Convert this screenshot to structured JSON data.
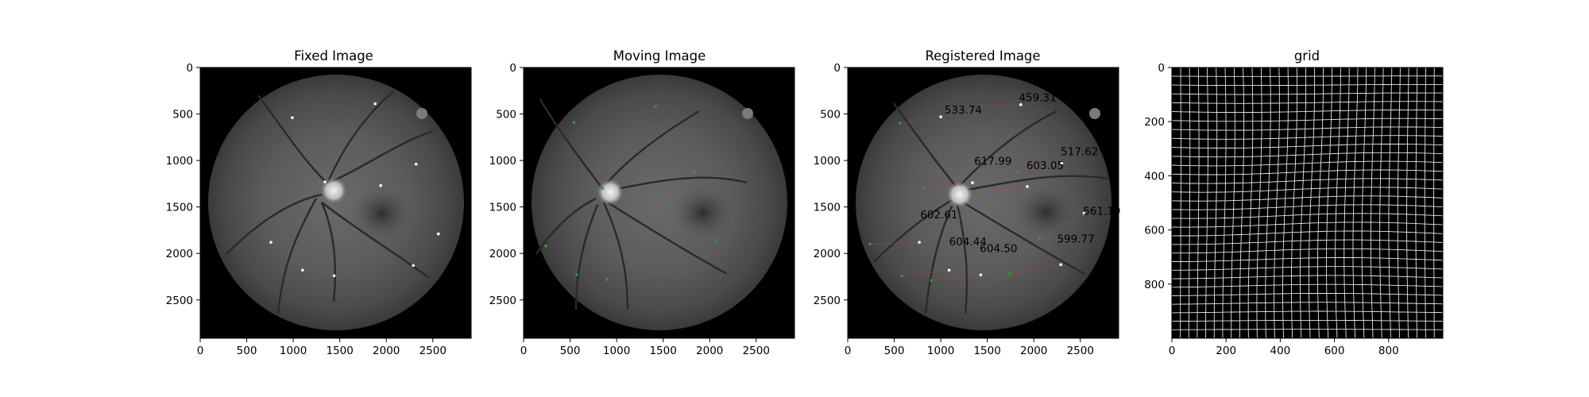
{
  "figure": {
    "panels": [
      {
        "title": "Fixed Image",
        "xticks": [
          "0",
          "500",
          "1000",
          "1500",
          "2000",
          "2500"
        ],
        "yticks": [
          "0",
          "500",
          "1000",
          "1500",
          "2000",
          "2500"
        ],
        "points": [
          [
            990,
            540
          ],
          [
            1880,
            390
          ],
          [
            2320,
            1040
          ],
          [
            1940,
            1270
          ],
          [
            2560,
            1790
          ],
          [
            2290,
            2130
          ],
          [
            1440,
            2240
          ],
          [
            1100,
            2180
          ],
          [
            760,
            1880
          ],
          [
            1340,
            1230
          ]
        ]
      },
      {
        "title": "Moving Image",
        "xticks": [
          "0",
          "500",
          "1000",
          "1500",
          "2000",
          "2500"
        ],
        "yticks": [
          "0",
          "500",
          "1000",
          "1500",
          "2000",
          "2500"
        ],
        "points": [
          [
            540,
            590
          ],
          [
            1420,
            420
          ],
          [
            1830,
            1120
          ],
          [
            1430,
            1340
          ],
          [
            2070,
            1860
          ],
          [
            1740,
            2200
          ],
          [
            900,
            2280
          ],
          [
            570,
            2230
          ],
          [
            240,
            1920
          ],
          [
            850,
            1300
          ]
        ]
      },
      {
        "title": "Registered Image",
        "xticks": [
          "0",
          "500",
          "1000",
          "1500",
          "2000",
          "2500"
        ],
        "yticks": [
          "0",
          "500",
          "1000",
          "1500",
          "2000",
          "2500"
        ],
        "points": [
          [
            1000,
            530
          ],
          [
            1860,
            400
          ],
          [
            2300,
            1030
          ],
          [
            1930,
            1280
          ],
          [
            2540,
            1570
          ],
          [
            2290,
            2120
          ],
          [
            1430,
            2230
          ],
          [
            1090,
            2180
          ],
          [
            770,
            1880
          ],
          [
            1340,
            1240
          ]
        ],
        "green_points": [
          [
            560,
            600
          ],
          [
            1420,
            420
          ],
          [
            1830,
            1120
          ],
          [
            1400,
            1340
          ],
          [
            2060,
            1840
          ],
          [
            1740,
            2220
          ],
          [
            900,
            2290
          ],
          [
            580,
            2240
          ],
          [
            240,
            1900
          ],
          [
            820,
            1300
          ]
        ],
        "annotations": [
          {
            "text": "533.74",
            "x": 1040,
            "y": 460
          },
          {
            "text": "459.31",
            "x": 1840,
            "y": 330
          },
          {
            "text": "517.62",
            "x": 2290,
            "y": 910
          },
          {
            "text": "617.99",
            "x": 1360,
            "y": 1010
          },
          {
            "text": "603.05",
            "x": 1920,
            "y": 1060
          },
          {
            "text": "602.61",
            "x": 780,
            "y": 1590
          },
          {
            "text": "561.19",
            "x": 2530,
            "y": 1550
          },
          {
            "text": "604.44",
            "x": 1090,
            "y": 1880
          },
          {
            "text": "604.50",
            "x": 1420,
            "y": 1950
          },
          {
            "text": "599.77",
            "x": 2250,
            "y": 1850
          }
        ]
      },
      {
        "title": "grid",
        "xticks": [
          "0",
          "200",
          "400",
          "600",
          "800"
        ],
        "yticks": [
          "0",
          "200",
          "400",
          "600",
          "800"
        ]
      }
    ]
  }
}
